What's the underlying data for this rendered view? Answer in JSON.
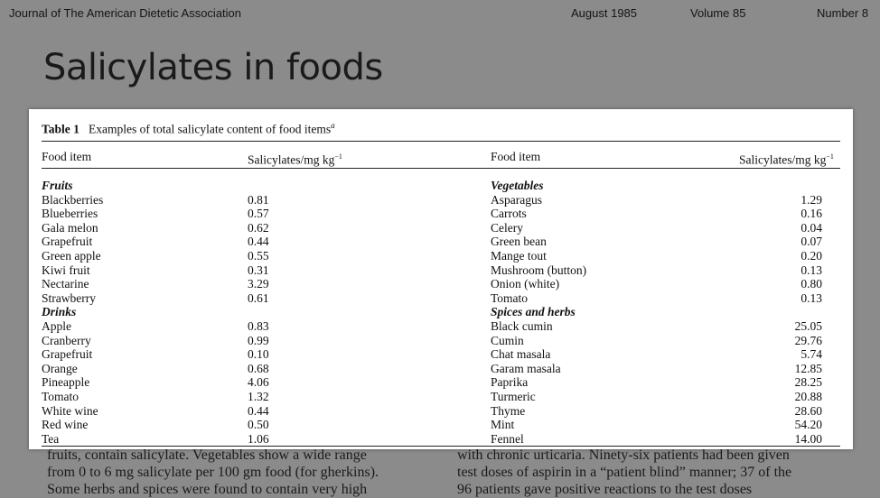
{
  "header": {
    "journal": "Journal of The American Dietetic Association",
    "date": "August 1985",
    "volume": "Volume 85",
    "number": "Number 8"
  },
  "title": "Salicylates in foods",
  "table": {
    "label": "Table 1",
    "caption": "Examples of total salicylate content of food items",
    "caption_note": "a",
    "columns": [
      "Food item",
      "Salicylates/mg kg",
      "Food item",
      "Salicylates/mg kg"
    ],
    "unit_exponent": "−1",
    "left": [
      {
        "heading": "Fruits",
        "rows": [
          [
            "Blackberries",
            "0.81"
          ],
          [
            "Blueberries",
            "0.57"
          ],
          [
            "Gala melon",
            "0.62"
          ],
          [
            "Grapefruit",
            "0.44"
          ],
          [
            "Green apple",
            "0.55"
          ],
          [
            "Kiwi fruit",
            "0.31"
          ],
          [
            "Nectarine",
            "3.29"
          ],
          [
            "Strawberry",
            "0.61"
          ]
        ]
      },
      {
        "heading": "Drinks",
        "rows": [
          [
            "Apple",
            "0.83"
          ],
          [
            "Cranberry",
            "0.99"
          ],
          [
            "Grapefruit",
            "0.10"
          ],
          [
            "Orange",
            "0.68"
          ],
          [
            "Pineapple",
            "4.06"
          ],
          [
            "Tomato",
            "1.32"
          ],
          [
            "White wine",
            "0.44"
          ],
          [
            "Red wine",
            "0.50"
          ],
          [
            "Tea",
            "1.06"
          ]
        ]
      }
    ],
    "right": [
      {
        "heading": "Vegetables",
        "rows": [
          [
            "Asparagus",
            "1.29"
          ],
          [
            "Carrots",
            "0.16"
          ],
          [
            "Celery",
            "0.04"
          ],
          [
            "Green bean",
            "0.07"
          ],
          [
            "Mange tout",
            "0.20"
          ],
          [
            "Mushroom (button)",
            "0.13"
          ],
          [
            "Onion (white)",
            "0.80"
          ],
          [
            "Tomato",
            "0.13"
          ]
        ]
      },
      {
        "heading": "Spices and herbs",
        "rows": [
          [
            "Black cumin",
            "25.05"
          ],
          [
            "Cumin",
            "29.76"
          ],
          [
            "Chat masala",
            "5.74"
          ],
          [
            "Garam masala",
            "12.85"
          ],
          [
            "Paprika",
            "28.25"
          ],
          [
            "Turmeric",
            "20.88"
          ],
          [
            "Thyme",
            "28.60"
          ],
          [
            "Mint",
            "54.20"
          ],
          [
            "Fennel",
            "14.00"
          ]
        ]
      }
    ]
  },
  "body": {
    "left": [
      "fruits, contain salicylate. Vegetables show a wide range",
      "from 0 to 6 mg salicylate per 100 gm food (for gherkins).",
      "Some herbs and spices were found to contain very high"
    ],
    "right": [
      "with chronic urticaria. Ninety-six patients had been given",
      "test doses of aspirin in a “patient blind” manner; 37 of the",
      "96 patients gave positive reactions to the test doses"
    ]
  }
}
